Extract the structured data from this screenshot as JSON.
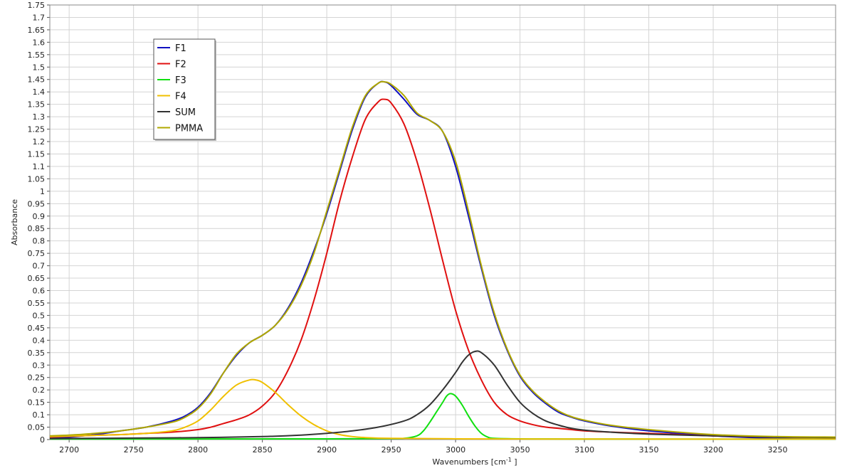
{
  "chart_data": {
    "type": "line",
    "title": "",
    "xlabel": "Wavenumbers [cm",
    "xlabel_sup": "-1",
    "xlabel_suffix": " ]",
    "ylabel": "Absorbance",
    "xlim": [
      2685,
      3295
    ],
    "ylim": [
      0,
      1.75
    ],
    "x_ticks": [
      2700,
      2750,
      2800,
      2850,
      2900,
      2950,
      3000,
      3050,
      3100,
      3150,
      3200,
      3250
    ],
    "y_ticks": [
      0,
      0.05,
      0.1,
      0.15,
      0.2,
      0.25,
      0.3,
      0.35,
      0.4,
      0.45,
      0.5,
      0.55,
      0.6,
      0.65,
      0.7,
      0.75,
      0.8,
      0.85,
      0.9,
      0.95,
      1,
      1.05,
      1.1,
      1.15,
      1.2,
      1.25,
      1.3,
      1.35,
      1.4,
      1.45,
      1.5,
      1.55,
      1.6,
      1.65,
      1.7,
      1.75
    ],
    "grid": true,
    "legend_position": "top-left",
    "series": [
      {
        "name": "F1",
        "color": "#1010c0",
        "x": [
          2685,
          2700,
          2720,
          2740,
          2760,
          2780,
          2790,
          2800,
          2810,
          2820,
          2830,
          2840,
          2850,
          2860,
          2870,
          2880,
          2890,
          2900,
          2910,
          2920,
          2930,
          2940,
          2945,
          2950,
          2960,
          2970,
          2980,
          2990,
          3000,
          3010,
          3020,
          3030,
          3040,
          3050,
          3060,
          3070,
          3080,
          3090,
          3100,
          3120,
          3150,
          3200,
          3250,
          3295
        ],
        "y": [
          0.005,
          0.01,
          0.02,
          0.035,
          0.05,
          0.075,
          0.095,
          0.13,
          0.19,
          0.27,
          0.34,
          0.39,
          0.42,
          0.46,
          0.53,
          0.63,
          0.76,
          0.91,
          1.08,
          1.25,
          1.38,
          1.435,
          1.44,
          1.425,
          1.37,
          1.31,
          1.285,
          1.24,
          1.1,
          0.9,
          0.69,
          0.5,
          0.36,
          0.255,
          0.19,
          0.145,
          0.11,
          0.09,
          0.075,
          0.055,
          0.035,
          0.015,
          0.005,
          0.003
        ]
      },
      {
        "name": "F2",
        "color": "#e01010",
        "x": [
          2685,
          2700,
          2720,
          2740,
          2760,
          2780,
          2800,
          2810,
          2820,
          2830,
          2840,
          2850,
          2860,
          2870,
          2880,
          2890,
          2900,
          2910,
          2920,
          2930,
          2940,
          2945,
          2950,
          2960,
          2970,
          2980,
          2990,
          3000,
          3010,
          3020,
          3030,
          3040,
          3050,
          3060,
          3070,
          3080,
          3090,
          3100,
          3120,
          3150,
          3200,
          3250,
          3295
        ],
        "y": [
          0.01,
          0.013,
          0.017,
          0.02,
          0.025,
          0.03,
          0.04,
          0.05,
          0.065,
          0.08,
          0.1,
          0.135,
          0.19,
          0.28,
          0.4,
          0.56,
          0.75,
          0.96,
          1.14,
          1.29,
          1.36,
          1.37,
          1.355,
          1.27,
          1.12,
          0.93,
          0.72,
          0.52,
          0.36,
          0.24,
          0.15,
          0.1,
          0.075,
          0.06,
          0.05,
          0.045,
          0.04,
          0.035,
          0.03,
          0.025,
          0.015,
          0.01,
          0.008
        ]
      },
      {
        "name": "F3",
        "color": "#10e010",
        "x": [
          2685,
          2900,
          2950,
          2960,
          2970,
          2975,
          2980,
          2985,
          2990,
          2993,
          2996,
          3000,
          3005,
          3010,
          3015,
          3020,
          3025,
          3030,
          3050,
          3100,
          3295
        ],
        "y": [
          0.002,
          0.003,
          0.004,
          0.005,
          0.015,
          0.035,
          0.07,
          0.11,
          0.15,
          0.175,
          0.185,
          0.175,
          0.14,
          0.095,
          0.055,
          0.025,
          0.01,
          0.005,
          0.003,
          0.002,
          0.002
        ]
      },
      {
        "name": "F4",
        "color": "#f0c000",
        "x": [
          2685,
          2700,
          2720,
          2740,
          2760,
          2780,
          2790,
          2800,
          2810,
          2820,
          2830,
          2840,
          2845,
          2850,
          2860,
          2870,
          2880,
          2890,
          2900,
          2910,
          2920,
          2930,
          2950,
          3000,
          3100,
          3295
        ],
        "y": [
          0.012,
          0.014,
          0.017,
          0.02,
          0.025,
          0.035,
          0.05,
          0.075,
          0.12,
          0.175,
          0.22,
          0.24,
          0.24,
          0.23,
          0.19,
          0.14,
          0.095,
          0.06,
          0.035,
          0.02,
          0.012,
          0.008,
          0.005,
          0.003,
          0.002,
          0.002
        ]
      },
      {
        "name": "SUM",
        "color": "#333333",
        "x": [
          2685,
          2750,
          2800,
          2850,
          2880,
          2900,
          2920,
          2940,
          2960,
          2970,
          2980,
          2990,
          3000,
          3005,
          3010,
          3015,
          3020,
          3030,
          3040,
          3050,
          3060,
          3070,
          3080,
          3090,
          3100,
          3120,
          3150,
          3200,
          3250,
          3295
        ],
        "y": [
          0.004,
          0.006,
          0.008,
          0.012,
          0.018,
          0.025,
          0.035,
          0.05,
          0.075,
          0.1,
          0.14,
          0.2,
          0.27,
          0.31,
          0.34,
          0.355,
          0.35,
          0.3,
          0.22,
          0.15,
          0.105,
          0.075,
          0.058,
          0.045,
          0.038,
          0.03,
          0.022,
          0.015,
          0.01,
          0.008
        ]
      },
      {
        "name": "PMMA",
        "color": "#b0a800",
        "x": [
          2685,
          2700,
          2720,
          2740,
          2760,
          2780,
          2790,
          2800,
          2810,
          2820,
          2830,
          2840,
          2850,
          2860,
          2870,
          2880,
          2890,
          2900,
          2910,
          2920,
          2930,
          2940,
          2945,
          2950,
          2960,
          2970,
          2980,
          2990,
          3000,
          3010,
          3020,
          3030,
          3040,
          3050,
          3060,
          3070,
          3080,
          3090,
          3100,
          3120,
          3150,
          3200,
          3250,
          3295
        ],
        "y": [
          0.015,
          0.018,
          0.025,
          0.035,
          0.05,
          0.07,
          0.09,
          0.125,
          0.185,
          0.27,
          0.345,
          0.39,
          0.42,
          0.46,
          0.525,
          0.62,
          0.75,
          0.92,
          1.09,
          1.26,
          1.385,
          1.435,
          1.44,
          1.43,
          1.385,
          1.315,
          1.285,
          1.24,
          1.12,
          0.92,
          0.7,
          0.51,
          0.365,
          0.26,
          0.195,
          0.15,
          0.115,
          0.092,
          0.078,
          0.058,
          0.04,
          0.02,
          0.012,
          0.01
        ]
      }
    ]
  }
}
